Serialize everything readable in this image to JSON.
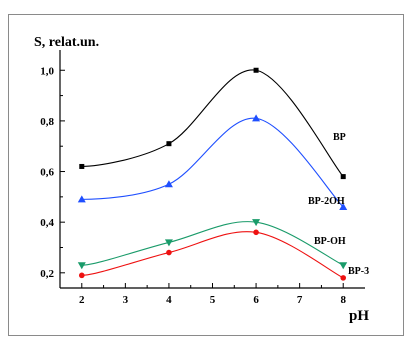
{
  "chart_data": {
    "type": "line",
    "title": "",
    "xlabel": "pH",
    "ylabel": "S, relat.un.",
    "xlim": [
      1.5,
      8.5
    ],
    "ylim": [
      0.14,
      1.08
    ],
    "xticks": [
      2,
      3,
      4,
      5,
      6,
      7,
      8
    ],
    "yticks": [
      0.2,
      0.4,
      0.6,
      0.8,
      1.0
    ],
    "xtick_labels": [
      "2",
      "3",
      "4",
      "5",
      "6",
      "7",
      "8"
    ],
    "ytick_labels": [
      "0,2",
      "0,4",
      "0,6",
      "0,8",
      "1,0"
    ],
    "series": [
      {
        "name": "BP",
        "color": "#000000",
        "marker": "square",
        "x": [
          2,
          4,
          6,
          8
        ],
        "y": [
          0.62,
          0.71,
          1.0,
          0.58
        ]
      },
      {
        "name": "BP-2OH",
        "color": "#1f4fff",
        "marker": "triangle-up",
        "x": [
          2,
          4,
          6,
          8
        ],
        "y": [
          0.49,
          0.55,
          0.81,
          0.46
        ]
      },
      {
        "name": "BP-OH",
        "color": "#1a9b6a",
        "marker": "triangle-down",
        "x": [
          2,
          4,
          6,
          8
        ],
        "y": [
          0.23,
          0.32,
          0.4,
          0.23
        ]
      },
      {
        "name": "BP-3",
        "color": "#ee1111",
        "marker": "circle",
        "x": [
          2,
          4,
          6,
          8
        ],
        "y": [
          0.19,
          0.28,
          0.36,
          0.18
        ]
      }
    ]
  }
}
